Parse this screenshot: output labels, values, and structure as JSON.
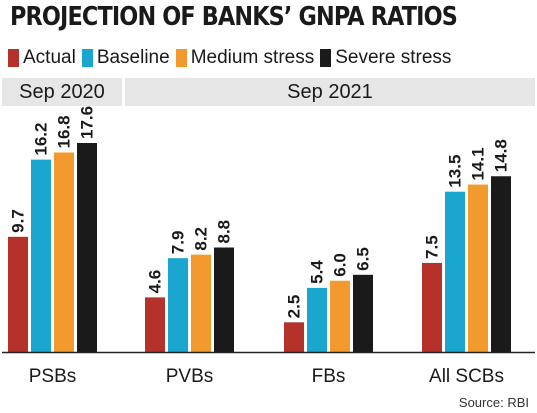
{
  "title": "PROJECTION OF BANKS’ GNPA RATIOS",
  "periods": {
    "left": "Sep 2020",
    "right": "Sep 2021"
  },
  "source": "Source: RBI",
  "chart_data": {
    "type": "bar",
    "title": "PROJECTION OF BANKS’ GNPA RATIOS",
    "categories": [
      "PSBs",
      "PVBs",
      "FBs",
      "All SCBs"
    ],
    "series": [
      {
        "name": "Actual",
        "color": "#b5322a",
        "values": [
          9.7,
          4.6,
          2.5,
          7.5
        ]
      },
      {
        "name": "Baseline",
        "color": "#1aa6cf",
        "values": [
          16.2,
          7.9,
          5.4,
          13.5
        ]
      },
      {
        "name": "Medium stress",
        "color": "#f39a2f",
        "values": [
          16.8,
          8.2,
          6.0,
          14.1
        ]
      },
      {
        "name": "Severe stress",
        "color": "#1a1a1a",
        "values": [
          17.6,
          8.8,
          6.5,
          14.8
        ]
      }
    ],
    "xlabel": "",
    "ylabel": "",
    "ylim": [
      0,
      17.6
    ],
    "grid": false,
    "legend_position": "top"
  }
}
